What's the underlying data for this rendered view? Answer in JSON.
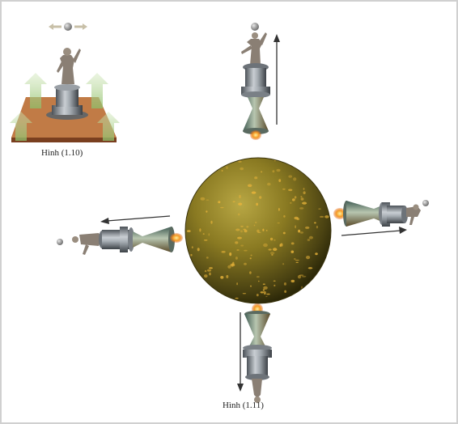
{
  "captions": {
    "figure_110": "Hình (1.10)",
    "figure_111": "Hình (1.11)"
  },
  "colors": {
    "sphere": "#8a7a22",
    "sphere_speckle": "#e9b43a",
    "tower_metal": "#8f969c",
    "flame": "#f08a1e",
    "arrow": "#333333",
    "platform": "#b0683a",
    "up_arrow": "#9cc47a"
  },
  "icons": [
    "statue-figure-icon",
    "rocket-tower-icon",
    "flame-icon",
    "ball-icon",
    "arrow-icon"
  ]
}
